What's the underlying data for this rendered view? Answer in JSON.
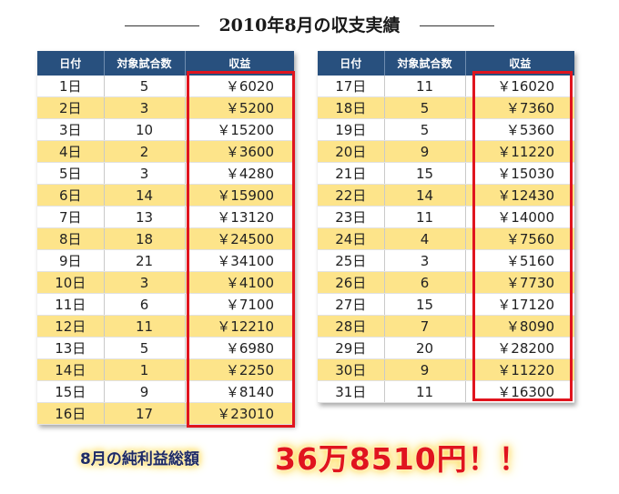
{
  "title": "2010年8月の収支実績",
  "headers": {
    "day": "日付",
    "games": "対象試合数",
    "profit": "収益"
  },
  "left_rows": [
    {
      "day": "1日",
      "games": "5",
      "profit": "￥6020"
    },
    {
      "day": "2日",
      "games": "3",
      "profit": "￥5200"
    },
    {
      "day": "3日",
      "games": "10",
      "profit": "￥15200"
    },
    {
      "day": "4日",
      "games": "2",
      "profit": "￥3600"
    },
    {
      "day": "5日",
      "games": "3",
      "profit": "￥4280"
    },
    {
      "day": "6日",
      "games": "14",
      "profit": "￥15900"
    },
    {
      "day": "7日",
      "games": "13",
      "profit": "￥13120"
    },
    {
      "day": "8日",
      "games": "18",
      "profit": "￥24500"
    },
    {
      "day": "9日",
      "games": "21",
      "profit": "￥34100"
    },
    {
      "day": "10日",
      "games": "3",
      "profit": "￥4100"
    },
    {
      "day": "11日",
      "games": "6",
      "profit": "￥7100"
    },
    {
      "day": "12日",
      "games": "11",
      "profit": "￥12210"
    },
    {
      "day": "13日",
      "games": "5",
      "profit": "￥6980"
    },
    {
      "day": "14日",
      "games": "1",
      "profit": "￥2250"
    },
    {
      "day": "15日",
      "games": "9",
      "profit": "￥8140"
    },
    {
      "day": "16日",
      "games": "17",
      "profit": "￥23010"
    }
  ],
  "right_rows": [
    {
      "day": "17日",
      "games": "11",
      "profit": "￥16020"
    },
    {
      "day": "18日",
      "games": "5",
      "profit": "￥7360"
    },
    {
      "day": "19日",
      "games": "5",
      "profit": "￥5360"
    },
    {
      "day": "20日",
      "games": "9",
      "profit": "￥11220"
    },
    {
      "day": "21日",
      "games": "15",
      "profit": "￥15030"
    },
    {
      "day": "22日",
      "games": "14",
      "profit": "￥12430"
    },
    {
      "day": "23日",
      "games": "11",
      "profit": "￥14000"
    },
    {
      "day": "24日",
      "games": "4",
      "profit": "￥7560"
    },
    {
      "day": "25日",
      "games": "3",
      "profit": "￥5160"
    },
    {
      "day": "26日",
      "games": "6",
      "profit": "￥7730"
    },
    {
      "day": "27日",
      "games": "15",
      "profit": "￥17120"
    },
    {
      "day": "28日",
      "games": "7",
      "profit": "￥8090"
    },
    {
      "day": "29日",
      "games": "20",
      "profit": "￥28200"
    },
    {
      "day": "30日",
      "games": "9",
      "profit": "￥11220"
    },
    {
      "day": "31日",
      "games": "11",
      "profit": "￥16300"
    }
  ],
  "total": {
    "label": "8月の純利益総額",
    "value": "36万8510円！！"
  },
  "colors": {
    "header_bg": "#28507e",
    "row_stripe": "#fde48a",
    "highlight_border": "#e0141e",
    "total_value": "#e0141e",
    "total_label": "#1d2a66"
  }
}
